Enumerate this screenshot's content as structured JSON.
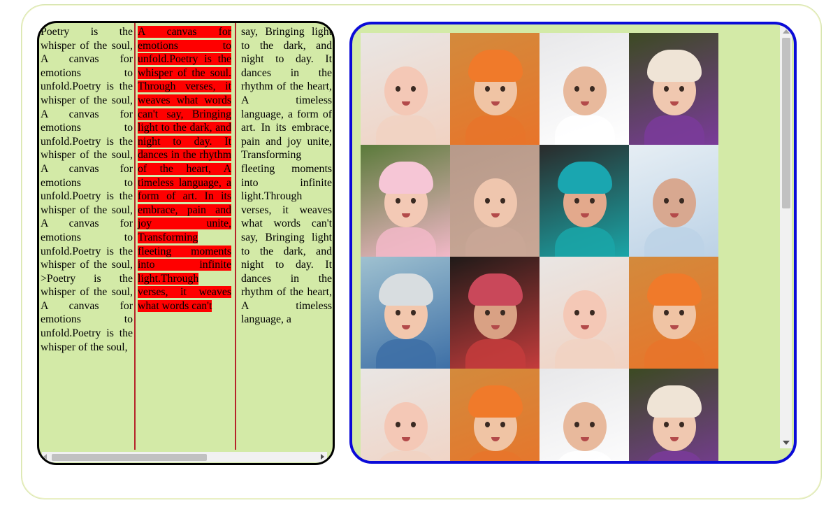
{
  "text_panel": {
    "col1_html": "Poetry is the whisper of the soul, A canvas for emotions to unfold.Poetry is the whisper of the soul, A canvas for emotions to unfold.Poetry is the whisper of the soul, A canvas for emotions to unfold.Poetry is the whisper of the soul, A canvas for emotions to unfold.Poetry is the whisper of the soul, &gt;Poetry is the whisper of the soul, A canvas for emotions to unfold.Poetry is the whisper of the soul,",
    "col2_text": "A canvas for emotions to unfold.Poetry is the whisper of the soul. Through verses, it weaves what words can't say, Bringing light to the dark, and night to day. It dances in the rhythm of the heart, A timeless language, a form of art. In its embrace, pain and joy unite, Transforming fleeting moments into infinite light.Through verses, it weaves what words can't",
    "col3_text": "say, Bringing light to the dark, and night to day. It dances in the rhythm of the heart, A timeless language, a form of art. In its embrace, pain and joy unite, Transforming fleeting moments into infinite light.Through verses, it weaves what words can't say, Bringing light to the dark, and night to day. It dances in the rhythm of the heart, A timeless language, a"
  },
  "colors": {
    "page_bg": "#ffffff",
    "panel_bg": "#d3eaa7",
    "highlight": "#ff0000",
    "column_rule": "#b5242a",
    "image_panel_border": "#0b0bd8",
    "text_panel_border": "#000000"
  },
  "image_grid": {
    "tiles": [
      {
        "name": "baby-sleeping-white",
        "bg": "#e9e6e4",
        "accent": "#f1d2c2",
        "skin": "#f4c8b6",
        "hat": ""
      },
      {
        "name": "baby-orange-flower-hat",
        "bg": "#d38a3c",
        "accent": "#e8742a",
        "skin": "#f0c4a4",
        "hat": "#f07a2a"
      },
      {
        "name": "baby-lying-pillow",
        "bg": "#e8e8ea",
        "accent": "#ffffff",
        "skin": "#e8b99c",
        "hat": ""
      },
      {
        "name": "baby-knit-hat-purple",
        "bg": "#3c4a22",
        "accent": "#7a3b9a",
        "skin": "#f0c8b0",
        "hat": "#efe4d6"
      },
      {
        "name": "baby-pink-hat",
        "bg": "#5a7a3a",
        "accent": "#f2b8c8",
        "skin": "#f3c9b5",
        "hat": "#f6c6d6"
      },
      {
        "name": "baby-closeup",
        "bg": "#b79a8a",
        "accent": "#c9a796",
        "skin": "#efc6ae",
        "hat": ""
      },
      {
        "name": "baby-teal-hat",
        "bg": "#2a2a2a",
        "accent": "#1aa6a8",
        "skin": "#e3a98c",
        "hat": "#1aa6b0"
      },
      {
        "name": "baby-blue-blanket",
        "bg": "#e6eef4",
        "accent": "#bcd2e6",
        "skin": "#d8a890",
        "hat": ""
      },
      {
        "name": "baby-blue-sweater",
        "bg": "#9fc1d0",
        "accent": "#3d6fa6",
        "skin": "#f2c7ad",
        "hat": "#d8dde0"
      },
      {
        "name": "baby-striped-hat",
        "bg": "#1f1a18",
        "accent": "#c43c3c",
        "skin": "#d9a184",
        "hat": "#c9485a"
      },
      {
        "name": "baby-sleeping-white",
        "bg": "#e9e6e4",
        "accent": "#f1d2c2",
        "skin": "#f4c8b6",
        "hat": ""
      },
      {
        "name": "baby-orange-flower-hat",
        "bg": "#d38a3c",
        "accent": "#e8742a",
        "skin": "#f0c4a4",
        "hat": "#f07a2a"
      },
      {
        "name": "baby-sleeping-white",
        "bg": "#e9e6e4",
        "accent": "#f1d2c2",
        "skin": "#f4c8b6",
        "hat": ""
      },
      {
        "name": "baby-orange-flower-hat",
        "bg": "#d38a3c",
        "accent": "#e8742a",
        "skin": "#f0c4a4",
        "hat": "#f07a2a"
      },
      {
        "name": "baby-lying-pillow",
        "bg": "#e8e8ea",
        "accent": "#ffffff",
        "skin": "#e8b99c",
        "hat": ""
      },
      {
        "name": "baby-knit-hat-purple",
        "bg": "#3c4a22",
        "accent": "#7a3b9a",
        "skin": "#f0c8b0",
        "hat": "#efe4d6"
      }
    ]
  }
}
